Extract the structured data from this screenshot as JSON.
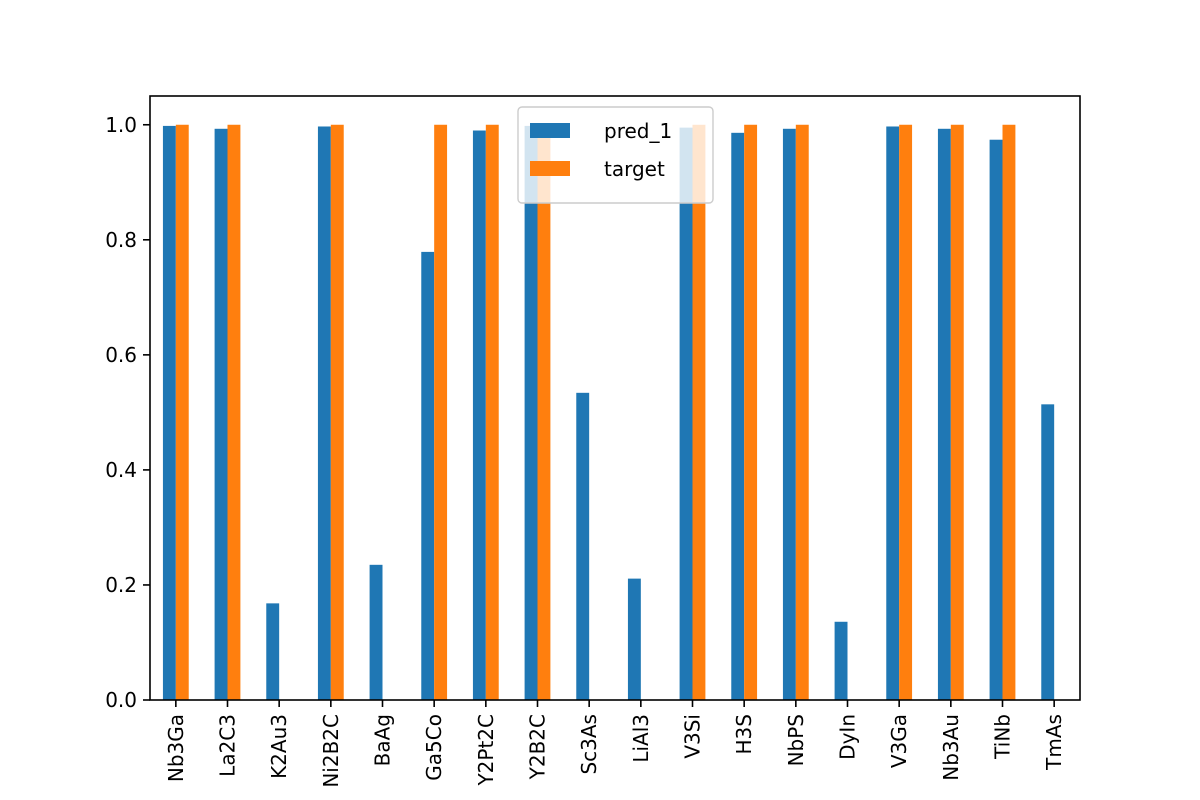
{
  "chart_data": {
    "type": "bar",
    "categories": [
      "Nb3Ga",
      "La2C3",
      "K2Au3",
      "Ni2B2C",
      "BaAg",
      "Ga5Co",
      "Y2Pt2C",
      "Y2B2C",
      "Sc3As",
      "LiAl3",
      "V3Si",
      "H3S",
      "NbPS",
      "DyIn",
      "V3Ga",
      "Nb3Au",
      "TiNb",
      "TmAs"
    ],
    "series": [
      {
        "name": "pred_1",
        "color": "#1f77b4",
        "values": [
          0.998,
          0.993,
          0.168,
          0.997,
          0.235,
          0.779,
          0.99,
          0.998,
          0.534,
          0.211,
          0.995,
          0.986,
          0.993,
          0.136,
          0.997,
          0.993,
          0.974,
          0.514
        ]
      },
      {
        "name": "target",
        "color": "#ff7f0e",
        "values": [
          1,
          1,
          0,
          1,
          0,
          1,
          1,
          1,
          0,
          0,
          1,
          1,
          1,
          0,
          1,
          1,
          1,
          0
        ]
      }
    ],
    "yticks": [
      "0.0",
      "0.2",
      "0.4",
      "0.6",
      "0.8",
      "1.0"
    ],
    "ylim": [
      0,
      1.05
    ],
    "grid": false,
    "legend_position": "top-center"
  }
}
